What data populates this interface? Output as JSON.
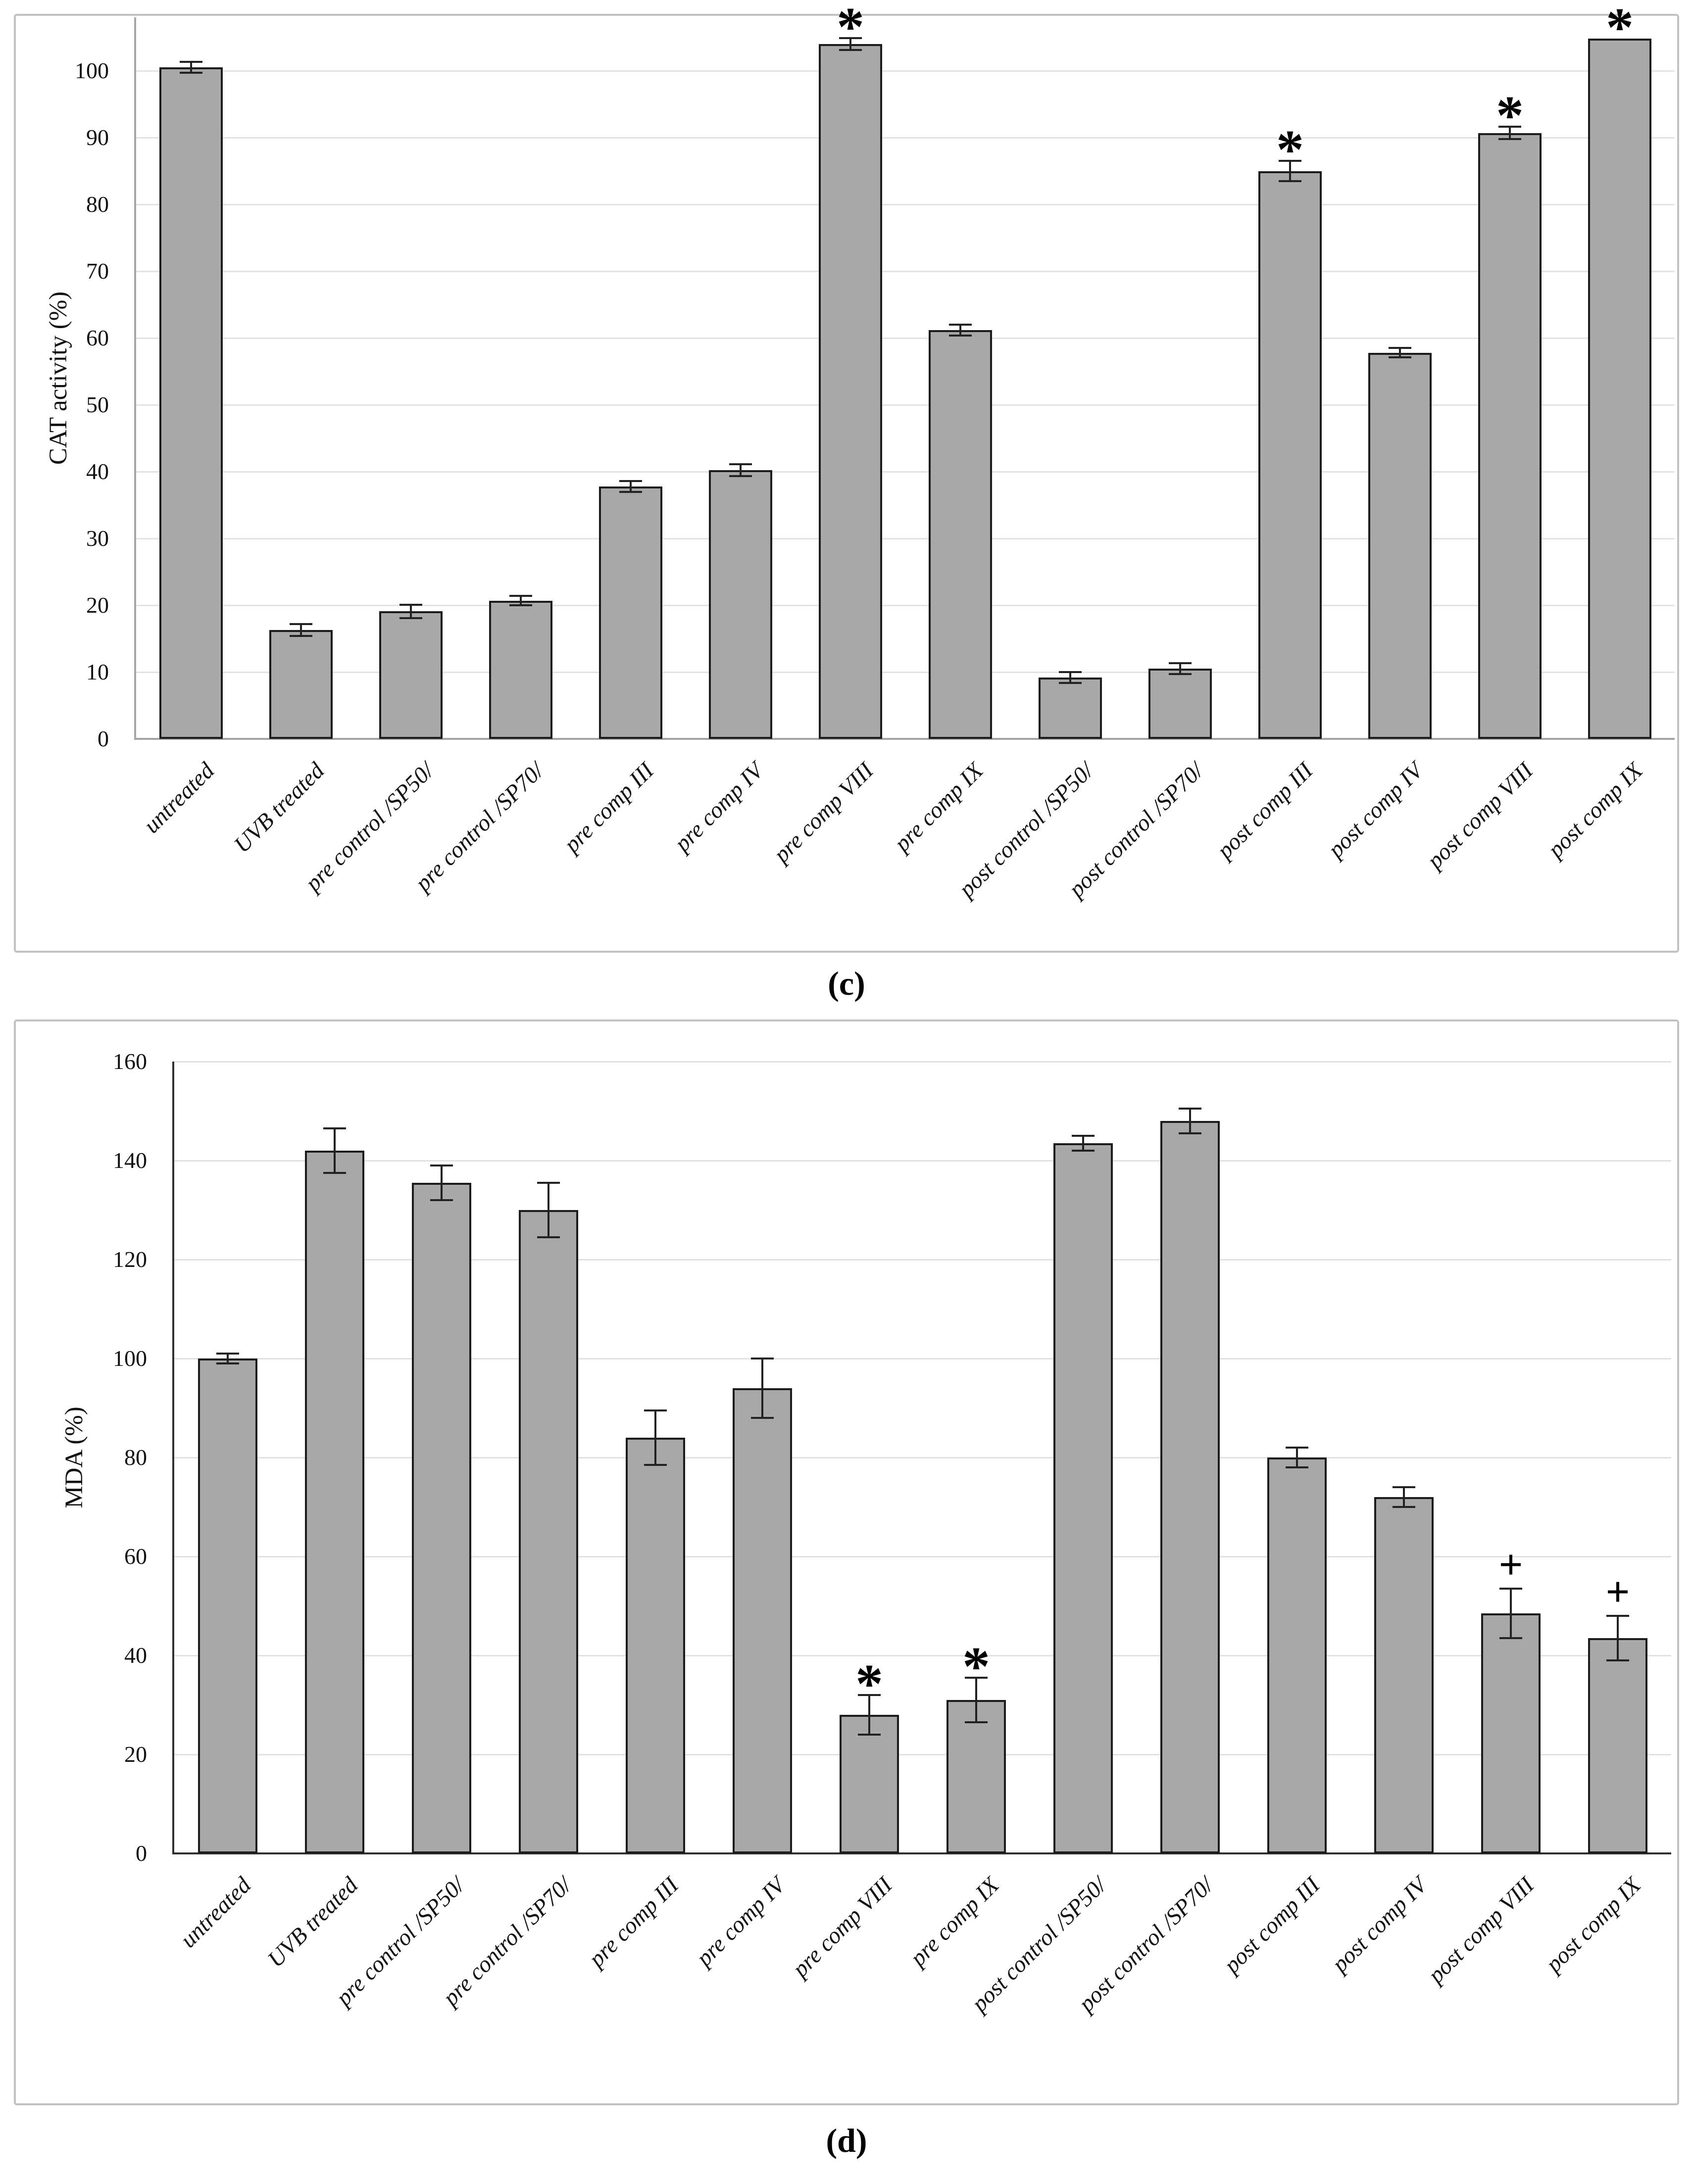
{
  "figure": {
    "captions": {
      "top": "(c)",
      "bottom": "(d)"
    },
    "colors": {
      "bar_fill": "#a8a8a8",
      "bar_border": "#1c1c1c",
      "gridline": "#e4e4e4",
      "error_bar": "#222222",
      "panel_border": "#c2c2c2",
      "cat_axis": "#a6a6a6",
      "mda_axis": "#2f2f2f"
    }
  },
  "chart_data": [
    {
      "type": "bar",
      "id": "cat",
      "title": "",
      "xlabel": "",
      "ylabel": "CAT activity (%)",
      "ylim": [
        0,
        108
      ],
      "yticks": [
        0,
        10,
        20,
        30,
        40,
        50,
        60,
        70,
        80,
        90,
        100
      ],
      "grid": true,
      "legend": null,
      "categories": [
        "untreated",
        "UVB treated",
        "pre control /SP50/",
        "pre control /SP70/",
        "pre comp III",
        "pre comp IV",
        "pre comp VIII",
        "pre comp IX",
        "post control /SP50/",
        "post control /SP70/",
        "post comp III",
        "post comp IV",
        "post comp VIII",
        "post comp IX"
      ],
      "values": [
        100.5,
        16.3,
        19.1,
        20.7,
        37.8,
        40.2,
        104,
        61.2,
        9.2,
        10.5,
        85,
        57.8,
        90.7,
        104.8
      ],
      "errors": [
        0.8,
        0.9,
        1.0,
        0.7,
        0.8,
        0.9,
        0.9,
        0.8,
        0.8,
        0.8,
        1.5,
        0.7,
        0.9,
        0
      ],
      "annotations": [
        "",
        "",
        "",
        "",
        "",
        "",
        "*",
        "",
        "",
        "",
        "*",
        "",
        "*",
        "*"
      ]
    },
    {
      "type": "bar",
      "id": "mda",
      "title": "",
      "xlabel": "",
      "ylabel": "MDA (%)",
      "ylim": [
        0,
        160
      ],
      "yticks": [
        0,
        20,
        40,
        60,
        80,
        100,
        120,
        140,
        160
      ],
      "grid": true,
      "legend": null,
      "categories": [
        "untreated",
        "UVB treated",
        "pre control /SP50/",
        "pre control /SP70/",
        "pre comp III",
        "pre comp IV",
        "pre comp VIII",
        "pre comp IX",
        "post control /SP50/",
        "post control /SP70/",
        "post comp III",
        "post comp IV",
        "post comp VIII",
        "post comp IX"
      ],
      "values": [
        100,
        142,
        135.5,
        130,
        84,
        94,
        28,
        31,
        143.5,
        148,
        80,
        72,
        48.5,
        43.5
      ],
      "errors": [
        1,
        4.5,
        3.5,
        5.5,
        5.5,
        6,
        4,
        4.5,
        1.5,
        2.5,
        2,
        2,
        5,
        4.5
      ],
      "annotations": [
        "",
        "",
        "",
        "",
        "",
        "",
        "*",
        "*",
        "",
        "",
        "",
        "",
        "+",
        "+"
      ]
    }
  ]
}
